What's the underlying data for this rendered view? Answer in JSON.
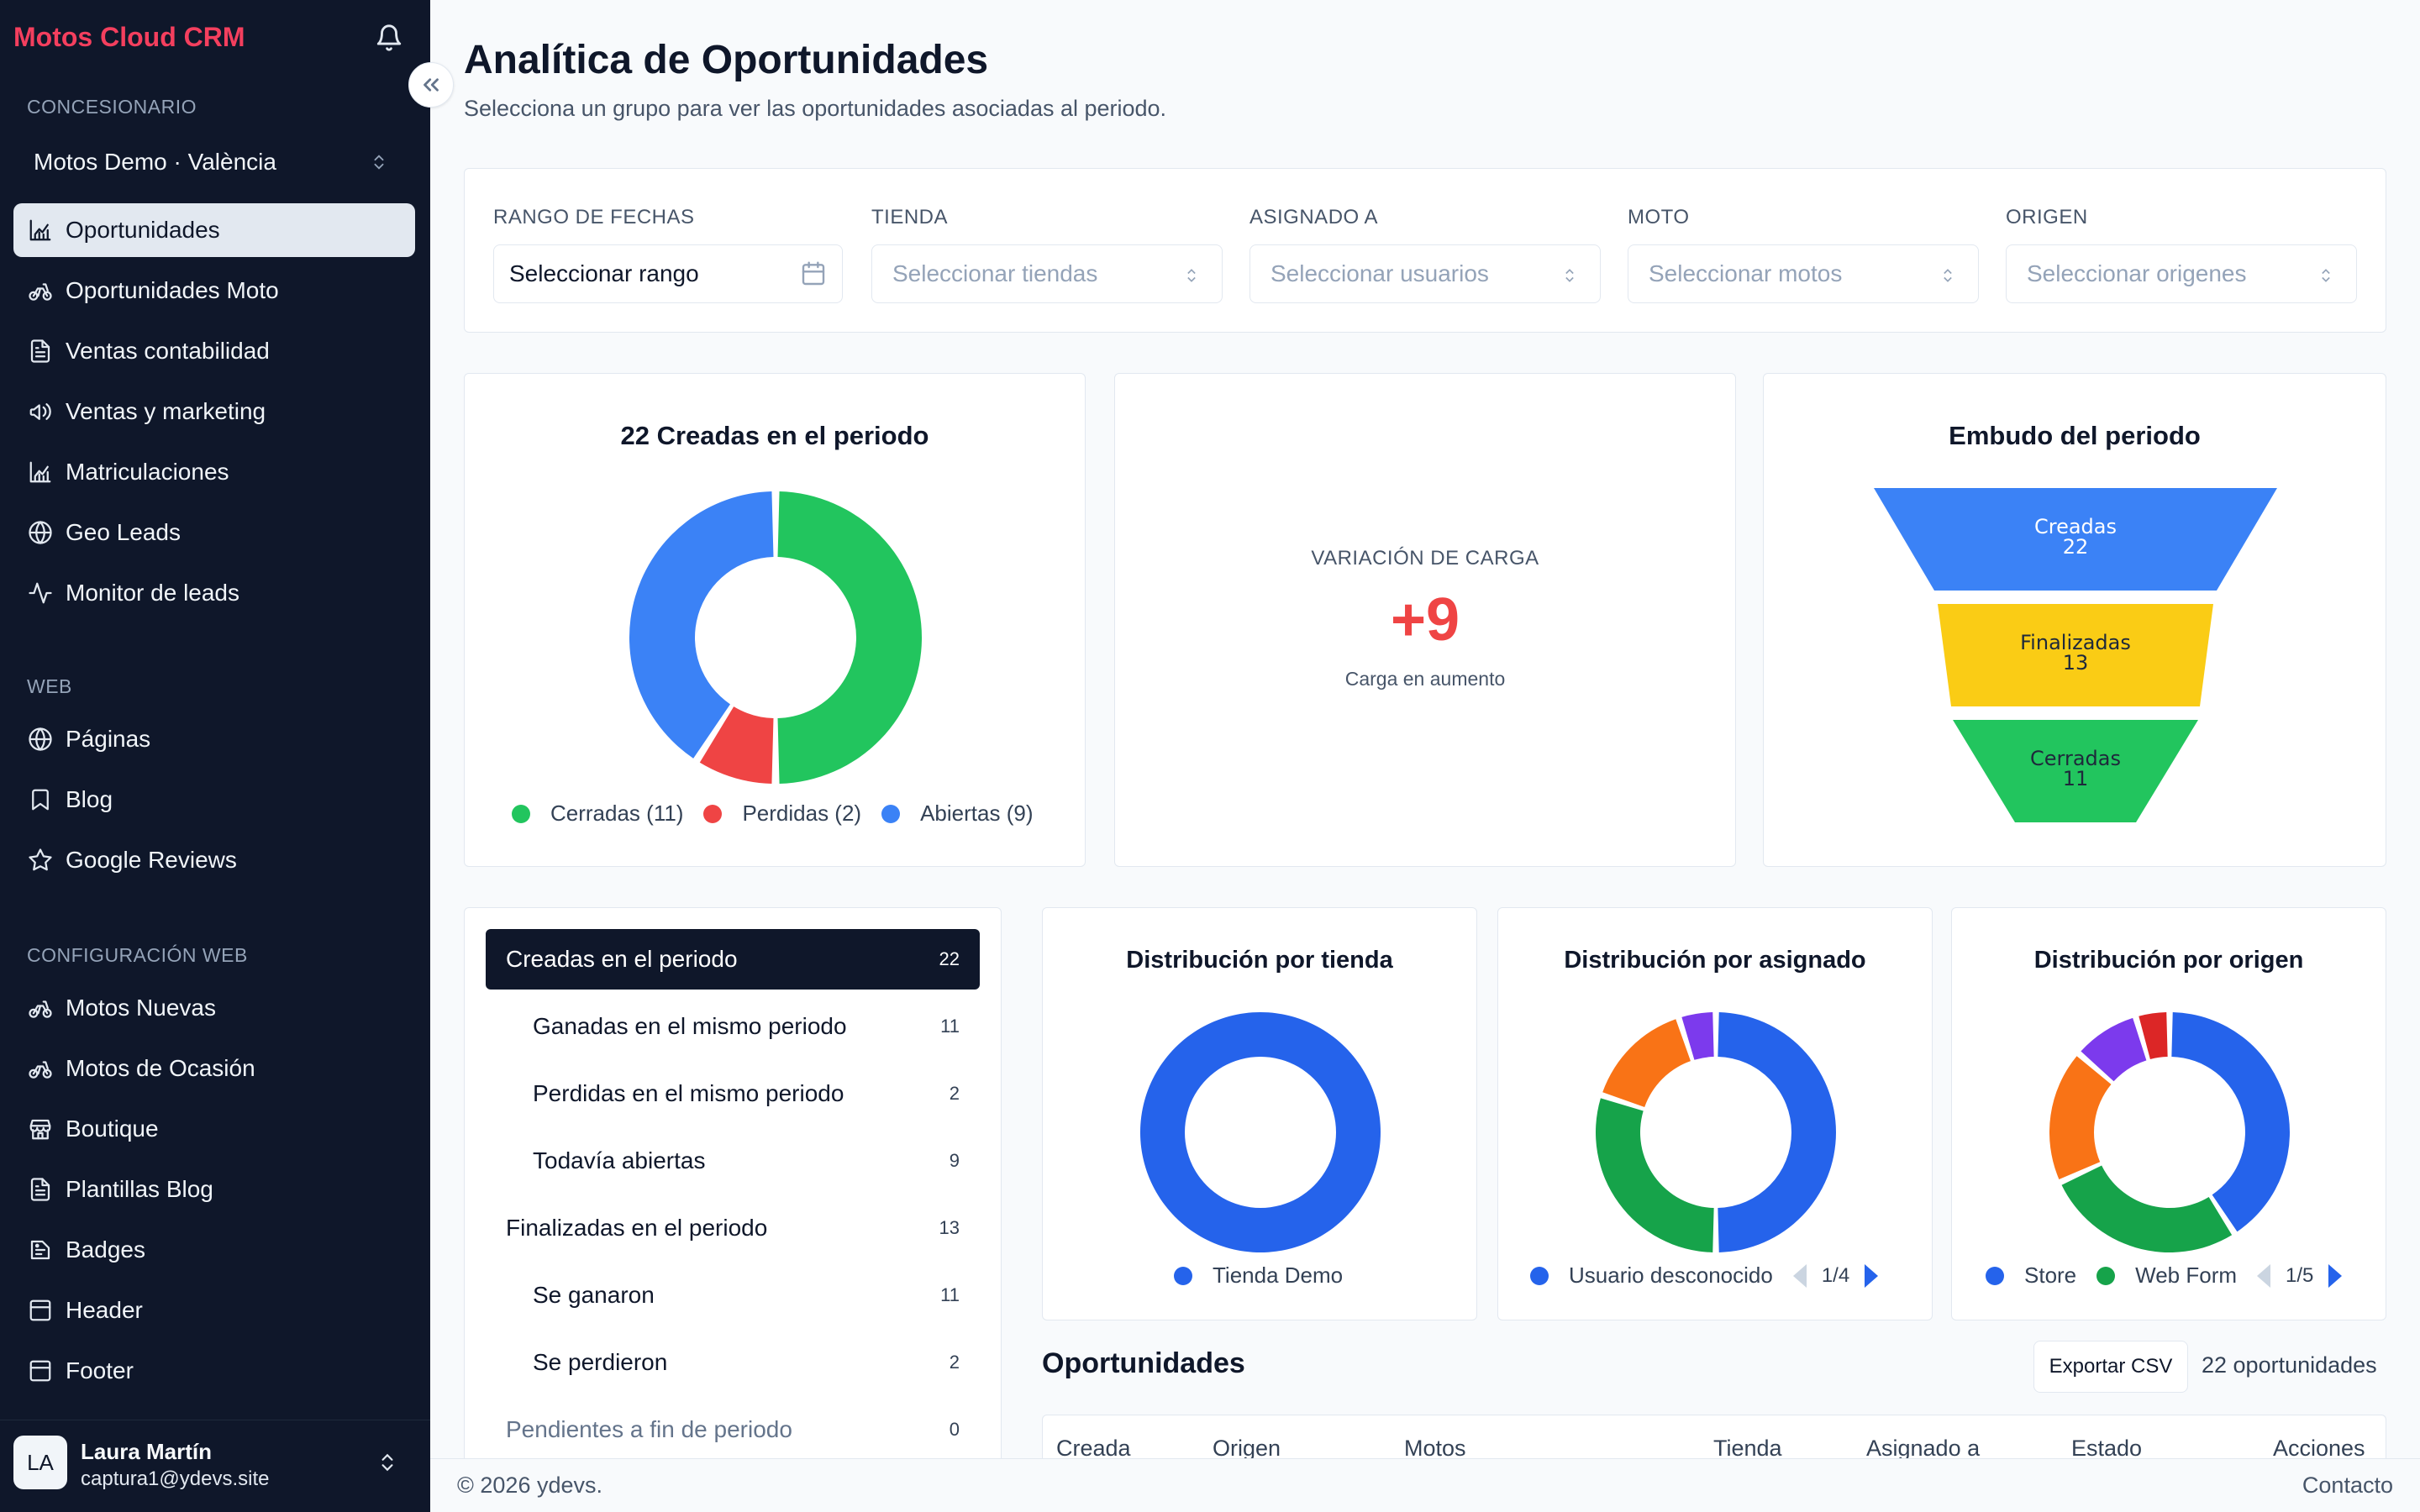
{
  "app": {
    "brand": "Motos Cloud CRM",
    "colors": {
      "brand": "#f43f5e",
      "sidebar": "#0f172a",
      "green": "#22c55e",
      "red": "#ef4444",
      "blue": "#3b82f6",
      "yellow": "#facc15",
      "accent_blue": "#2563eb"
    }
  },
  "sidebar": {
    "dealer_section": "CONCESIONARIO",
    "dealer_name": "Motos Demo · València",
    "items_main": [
      {
        "label": "Oportunidades",
        "icon": "chart-icon"
      },
      {
        "label": "Oportunidades Moto",
        "icon": "motorbike-icon"
      },
      {
        "label": "Ventas contabilidad",
        "icon": "document-icon"
      },
      {
        "label": "Ventas y marketing",
        "icon": "megaphone-icon"
      },
      {
        "label": "Matriculaciones",
        "icon": "chart-icon"
      },
      {
        "label": "Geo Leads",
        "icon": "globe-icon"
      },
      {
        "label": "Monitor de leads",
        "icon": "activity-icon"
      }
    ],
    "web_section": "WEB",
    "items_web": [
      {
        "label": "Páginas",
        "icon": "globe-icon"
      },
      {
        "label": "Blog",
        "icon": "bookmark-icon"
      },
      {
        "label": "Google Reviews",
        "icon": "star-icon"
      }
    ],
    "config_section": "CONFIGURACIÓN WEB",
    "items_config": [
      {
        "label": "Motos Nuevas",
        "icon": "motorbike-icon"
      },
      {
        "label": "Motos de Ocasión",
        "icon": "motorbike-icon"
      },
      {
        "label": "Boutique",
        "icon": "store-icon"
      },
      {
        "label": "Plantillas Blog",
        "icon": "document-icon"
      },
      {
        "label": "Badges",
        "icon": "badge-icon"
      },
      {
        "label": "Header",
        "icon": "layout-icon"
      },
      {
        "label": "Footer",
        "icon": "layout-icon"
      }
    ],
    "user": {
      "initials": "LA",
      "name": "Laura Martín",
      "email": "captura1@ydevs.site"
    }
  },
  "header": {
    "title": "Analítica de Oportunidades",
    "subtitle": "Selecciona un grupo para ver las oportunidades asociadas al periodo."
  },
  "filters": {
    "date": {
      "label": "RANGO DE FECHAS",
      "value": "Seleccionar rango"
    },
    "store": {
      "label": "TIENDA",
      "placeholder": "Seleccionar tiendas"
    },
    "assignee": {
      "label": "ASIGNADO A",
      "placeholder": "Seleccionar usuarios"
    },
    "moto": {
      "label": "MOTO",
      "placeholder": "Seleccionar motos"
    },
    "origin": {
      "label": "ORIGEN",
      "placeholder": "Seleccionar origenes"
    }
  },
  "kpi": {
    "label": "VARIACIÓN DE CARGA",
    "value": "+9",
    "note": "Carga en aumento"
  },
  "groups": [
    {
      "label": "Creadas en el periodo",
      "count": "22",
      "level": 0
    },
    {
      "label": "Ganadas en el mismo periodo",
      "count": "11",
      "level": 1
    },
    {
      "label": "Perdidas en el mismo periodo",
      "count": "2",
      "level": 1
    },
    {
      "label": "Todavía abiertas",
      "count": "9",
      "level": 1
    },
    {
      "label": "Finalizadas en el periodo",
      "count": "13",
      "level": 0
    },
    {
      "label": "Se ganaron",
      "count": "11",
      "level": 1
    },
    {
      "label": "Se perdieron",
      "count": "2",
      "level": 1
    },
    {
      "label": "Pendientes a fin de periodo",
      "count": "0",
      "level": 0
    }
  ],
  "chart_data": [
    {
      "type": "pie",
      "title": "22 Creadas en el periodo",
      "categories": [
        "Cerradas (11)",
        "Perdidas (2)",
        "Abiertas (9)"
      ],
      "values": [
        11,
        2,
        9
      ],
      "colors": [
        "#22c55e",
        "#ef4444",
        "#3b82f6"
      ]
    },
    {
      "type": "bar",
      "title": "Embudo del periodo",
      "categories": [
        "Creadas",
        "Finalizadas",
        "Cerradas"
      ],
      "values": [
        22,
        13,
        11
      ],
      "colors": [
        "#3b82f6",
        "#facc15",
        "#22c55e"
      ]
    },
    {
      "type": "pie",
      "title": "Distribución por tienda",
      "categories": [
        "Tienda Demo"
      ],
      "values": [
        22
      ],
      "colors": [
        "#2563eb"
      ]
    },
    {
      "type": "pie",
      "title": "Distribución por asignado",
      "legend": [
        "Usuario desconocido"
      ],
      "pager": "1/4",
      "values": [
        10,
        6,
        3,
        1
      ],
      "colors": [
        "#2563eb",
        "#16a34a",
        "#f97316",
        "#7c3aed"
      ]
    },
    {
      "type": "pie",
      "title": "Distribución por origen",
      "legend": [
        "Store",
        "Web Form"
      ],
      "pager": "1/5",
      "values": [
        9,
        6,
        4,
        2,
        1
      ],
      "colors": [
        "#2563eb",
        "#16a34a",
        "#f97316",
        "#7c3aed",
        "#dc2626"
      ]
    }
  ],
  "opportunities": {
    "title": "Oportunidades",
    "export_label": "Exportar CSV",
    "count_label": "22 oportunidades",
    "columns": [
      "Creada",
      "Origen",
      "Motos",
      "Tienda",
      "Asignado a",
      "Estado",
      "Acciones"
    ]
  },
  "footer": {
    "copyright": "© 2026 ydevs.",
    "contact": "Contacto"
  }
}
